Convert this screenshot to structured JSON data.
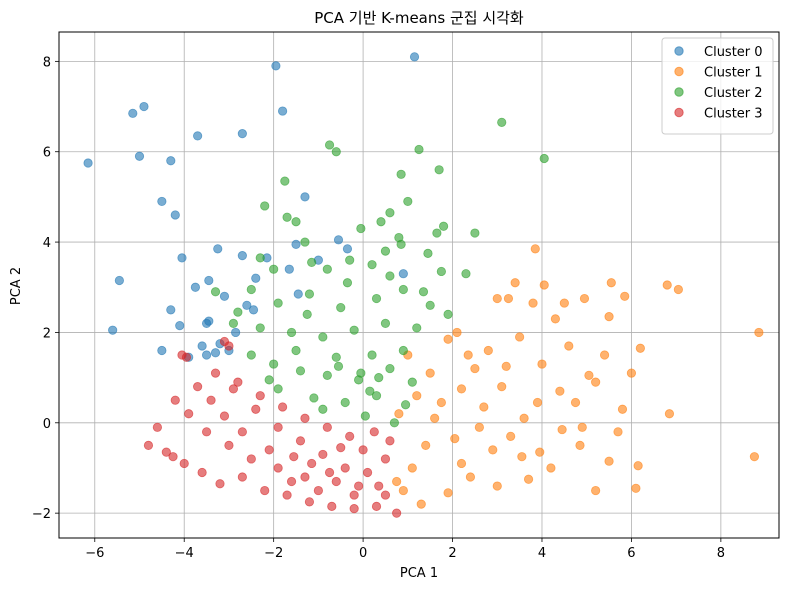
{
  "chart_data": {
    "type": "scatter",
    "title": "PCA 기반 K-means 군집 시각화",
    "xlabel": "PCA 1",
    "ylabel": "PCA 2",
    "xlim": [
      -6.8,
      9.3
    ],
    "ylim": [
      -2.55,
      8.65
    ],
    "xticks": [
      -6,
      -4,
      -2,
      0,
      2,
      4,
      6,
      8
    ],
    "yticks": [
      -2,
      0,
      2,
      4,
      6,
      8
    ],
    "grid": true,
    "legend_position": "top-right",
    "series": [
      {
        "name": "Cluster 0",
        "color": "#1f77b4",
        "points": [
          [
            -6.15,
            5.75
          ],
          [
            -5.15,
            6.85
          ],
          [
            -4.9,
            7.0
          ],
          [
            -5.0,
            5.9
          ],
          [
            -4.3,
            5.8
          ],
          [
            -3.7,
            6.35
          ],
          [
            -2.7,
            6.4
          ],
          [
            -1.95,
            7.9
          ],
          [
            -1.8,
            6.9
          ],
          [
            1.15,
            8.1
          ],
          [
            -4.5,
            4.9
          ],
          [
            -4.2,
            4.6
          ],
          [
            -1.3,
            5.0
          ],
          [
            -5.6,
            2.05
          ],
          [
            -5.45,
            3.15
          ],
          [
            -4.05,
            3.65
          ],
          [
            -3.25,
            3.85
          ],
          [
            -3.75,
            3.0
          ],
          [
            -3.45,
            3.15
          ],
          [
            -4.3,
            2.5
          ],
          [
            -4.1,
            2.15
          ],
          [
            -3.5,
            2.2
          ],
          [
            -3.1,
            2.8
          ],
          [
            -2.7,
            3.7
          ],
          [
            -2.4,
            3.2
          ],
          [
            -2.15,
            3.65
          ],
          [
            -1.65,
            3.4
          ],
          [
            -1.5,
            3.95
          ],
          [
            -1.45,
            2.85
          ],
          [
            -0.55,
            4.05
          ],
          [
            -0.35,
            3.85
          ],
          [
            -3.6,
            1.7
          ],
          [
            -3.3,
            1.55
          ],
          [
            -3.0,
            1.6
          ],
          [
            -2.85,
            2.0
          ],
          [
            -2.6,
            2.6
          ],
          [
            -2.45,
            2.5
          ],
          [
            -4.5,
            1.6
          ],
          [
            -3.9,
            1.45
          ],
          [
            -3.5,
            1.5
          ],
          [
            -3.2,
            1.75
          ],
          [
            0.9,
            3.3
          ],
          [
            -1.0,
            3.6
          ],
          [
            -3.45,
            2.25
          ]
        ]
      },
      {
        "name": "Cluster 1",
        "color": "#ff7f0e",
        "points": [
          [
            8.85,
            2.0
          ],
          [
            8.75,
            -0.75
          ],
          [
            6.85,
            0.2
          ],
          [
            6.8,
            3.05
          ],
          [
            7.05,
            2.95
          ],
          [
            6.15,
            -0.95
          ],
          [
            6.1,
            -1.45
          ],
          [
            5.85,
            2.8
          ],
          [
            5.55,
            3.1
          ],
          [
            5.5,
            2.35
          ],
          [
            5.8,
            0.3
          ],
          [
            6.0,
            1.1
          ],
          [
            5.5,
            -0.85
          ],
          [
            5.2,
            -1.5
          ],
          [
            4.95,
            2.75
          ],
          [
            5.05,
            1.05
          ],
          [
            4.75,
            0.45
          ],
          [
            4.5,
            2.65
          ],
          [
            4.3,
            2.3
          ],
          [
            4.05,
            3.05
          ],
          [
            3.85,
            3.85
          ],
          [
            3.8,
            2.65
          ],
          [
            3.4,
            3.1
          ],
          [
            3.25,
            2.75
          ],
          [
            3.0,
            2.75
          ],
          [
            4.45,
            -0.15
          ],
          [
            3.95,
            -0.65
          ],
          [
            3.7,
            -1.25
          ],
          [
            4.85,
            -0.5
          ],
          [
            2.1,
            2.0
          ],
          [
            1.9,
            1.85
          ],
          [
            2.5,
            1.2
          ],
          [
            3.1,
            0.8
          ],
          [
            3.6,
            0.1
          ],
          [
            2.9,
            -0.6
          ],
          [
            2.4,
            -1.2
          ],
          [
            1.9,
            -1.55
          ],
          [
            1.3,
            -1.8
          ],
          [
            0.9,
            -1.5
          ],
          [
            1.2,
            0.6
          ],
          [
            1.6,
            0.1
          ],
          [
            2.05,
            -0.35
          ],
          [
            2.7,
            0.35
          ],
          [
            3.3,
            -0.3
          ],
          [
            1.0,
            1.5
          ],
          [
            1.5,
            1.1
          ],
          [
            2.2,
            0.75
          ],
          [
            2.8,
            1.6
          ],
          [
            3.5,
            1.9
          ],
          [
            4.0,
            1.3
          ],
          [
            4.4,
            0.7
          ],
          [
            5.2,
            0.9
          ],
          [
            5.7,
            -0.2
          ],
          [
            4.2,
            -1.0
          ],
          [
            3.0,
            -1.4
          ],
          [
            2.2,
            -0.9
          ],
          [
            1.75,
            0.45
          ],
          [
            1.4,
            -0.5
          ],
          [
            2.6,
            -0.1
          ],
          [
            3.9,
            0.45
          ],
          [
            0.8,
            0.2
          ],
          [
            1.1,
            -1.0
          ],
          [
            0.75,
            -1.3
          ],
          [
            2.35,
            1.5
          ],
          [
            3.2,
            1.25
          ],
          [
            4.6,
            1.7
          ],
          [
            5.4,
            1.5
          ],
          [
            6.2,
            1.65
          ],
          [
            4.9,
            -0.1
          ],
          [
            3.55,
            -0.75
          ]
        ]
      },
      {
        "name": "Cluster 2",
        "color": "#2ca02c",
        "points": [
          [
            3.1,
            6.65
          ],
          [
            4.05,
            5.85
          ],
          [
            1.25,
            6.05
          ],
          [
            1.7,
            5.6
          ],
          [
            0.85,
            5.5
          ],
          [
            -0.75,
            6.15
          ],
          [
            -0.6,
            6.0
          ],
          [
            -1.75,
            5.35
          ],
          [
            1.8,
            4.35
          ],
          [
            1.65,
            4.2
          ],
          [
            2.5,
            4.2
          ],
          [
            1.0,
            4.9
          ],
          [
            0.6,
            4.65
          ],
          [
            -1.7,
            4.55
          ],
          [
            -1.5,
            4.45
          ],
          [
            -2.2,
            4.8
          ],
          [
            -1.3,
            4.0
          ],
          [
            -0.05,
            4.3
          ],
          [
            0.4,
            4.45
          ],
          [
            0.8,
            4.1
          ],
          [
            -2.3,
            3.65
          ],
          [
            -2.0,
            3.4
          ],
          [
            -1.15,
            3.55
          ],
          [
            -0.8,
            3.4
          ],
          [
            -0.3,
            3.6
          ],
          [
            0.2,
            3.5
          ],
          [
            0.5,
            3.8
          ],
          [
            0.85,
            3.95
          ],
          [
            1.45,
            3.75
          ],
          [
            1.75,
            3.35
          ],
          [
            2.3,
            3.3
          ],
          [
            -2.5,
            2.95
          ],
          [
            -1.9,
            2.65
          ],
          [
            -1.2,
            2.85
          ],
          [
            -0.5,
            2.55
          ],
          [
            0.3,
            2.75
          ],
          [
            0.9,
            2.95
          ],
          [
            1.5,
            2.6
          ],
          [
            1.9,
            2.4
          ],
          [
            -2.8,
            2.45
          ],
          [
            -2.3,
            2.1
          ],
          [
            -1.6,
            2.0
          ],
          [
            -0.9,
            1.9
          ],
          [
            -0.2,
            2.05
          ],
          [
            0.5,
            2.2
          ],
          [
            1.2,
            2.1
          ],
          [
            -2.5,
            1.5
          ],
          [
            -2.0,
            1.3
          ],
          [
            -1.4,
            1.15
          ],
          [
            -0.8,
            1.05
          ],
          [
            -0.1,
            0.95
          ],
          [
            0.6,
            1.2
          ],
          [
            1.1,
            0.9
          ],
          [
            -1.9,
            0.75
          ],
          [
            -1.1,
            0.55
          ],
          [
            -0.4,
            0.45
          ],
          [
            0.3,
            0.6
          ],
          [
            0.95,
            0.4
          ],
          [
            -1.5,
            1.6
          ],
          [
            -0.6,
            1.45
          ],
          [
            0.2,
            1.5
          ],
          [
            0.9,
            1.6
          ],
          [
            -2.1,
            0.95
          ],
          [
            -0.9,
            0.3
          ],
          [
            0.05,
            0.15
          ],
          [
            0.7,
            0.0
          ],
          [
            -1.25,
            2.4
          ],
          [
            -0.35,
            3.1
          ],
          [
            0.6,
            3.25
          ],
          [
            1.35,
            2.9
          ],
          [
            -3.3,
            2.9
          ],
          [
            -2.9,
            2.2
          ],
          [
            -0.05,
            1.1
          ],
          [
            0.35,
            1.0
          ],
          [
            -0.55,
            1.25
          ],
          [
            0.15,
            0.7
          ]
        ]
      },
      {
        "name": "Cluster 3",
        "color": "#d62728",
        "points": [
          [
            -4.05,
            1.5
          ],
          [
            -3.95,
            1.45
          ],
          [
            -3.1,
            1.8
          ],
          [
            -3.0,
            1.7
          ],
          [
            -4.2,
            0.5
          ],
          [
            -4.6,
            -0.1
          ],
          [
            -4.8,
            -0.5
          ],
          [
            -4.25,
            -0.75
          ],
          [
            -4.0,
            -0.9
          ],
          [
            -3.6,
            -1.1
          ],
          [
            -3.2,
            -1.35
          ],
          [
            -2.7,
            -1.2
          ],
          [
            -2.2,
            -1.5
          ],
          [
            -1.7,
            -1.6
          ],
          [
            -1.2,
            -1.75
          ],
          [
            -0.7,
            -1.85
          ],
          [
            -0.2,
            -1.9
          ],
          [
            0.3,
            -1.85
          ],
          [
            0.75,
            -2.0
          ],
          [
            0.5,
            -1.6
          ],
          [
            -0.1,
            -1.4
          ],
          [
            -0.6,
            -1.3
          ],
          [
            -1.3,
            -1.2
          ],
          [
            -1.9,
            -1.0
          ],
          [
            -2.5,
            -0.8
          ],
          [
            -3.0,
            -0.5
          ],
          [
            -3.5,
            -0.2
          ],
          [
            -3.9,
            0.2
          ],
          [
            -3.4,
            0.5
          ],
          [
            -2.9,
            0.75
          ],
          [
            -2.4,
            0.3
          ],
          [
            -1.9,
            -0.1
          ],
          [
            -1.4,
            -0.4
          ],
          [
            -0.9,
            -0.7
          ],
          [
            -0.4,
            -1.0
          ],
          [
            0.1,
            -1.1
          ],
          [
            0.5,
            -0.8
          ],
          [
            0.6,
            -0.4
          ],
          [
            0.25,
            -0.2
          ],
          [
            -0.3,
            -0.3
          ],
          [
            -0.8,
            -0.1
          ],
          [
            -1.3,
            0.1
          ],
          [
            -1.8,
            0.35
          ],
          [
            -2.3,
            0.6
          ],
          [
            -2.8,
            0.9
          ],
          [
            -3.3,
            1.1
          ],
          [
            -3.7,
            0.8
          ],
          [
            -4.4,
            -0.65
          ],
          [
            -1.0,
            -1.5
          ],
          [
            -1.6,
            -1.3
          ],
          [
            -2.1,
            -0.6
          ],
          [
            -0.5,
            -0.55
          ],
          [
            0.0,
            -0.6
          ],
          [
            -1.15,
            -0.9
          ],
          [
            -2.7,
            -0.2
          ],
          [
            -3.1,
            0.15
          ],
          [
            -0.2,
            -1.6
          ],
          [
            0.35,
            -1.4
          ],
          [
            -0.75,
            -1.1
          ],
          [
            -1.55,
            -0.75
          ]
        ]
      }
    ]
  }
}
